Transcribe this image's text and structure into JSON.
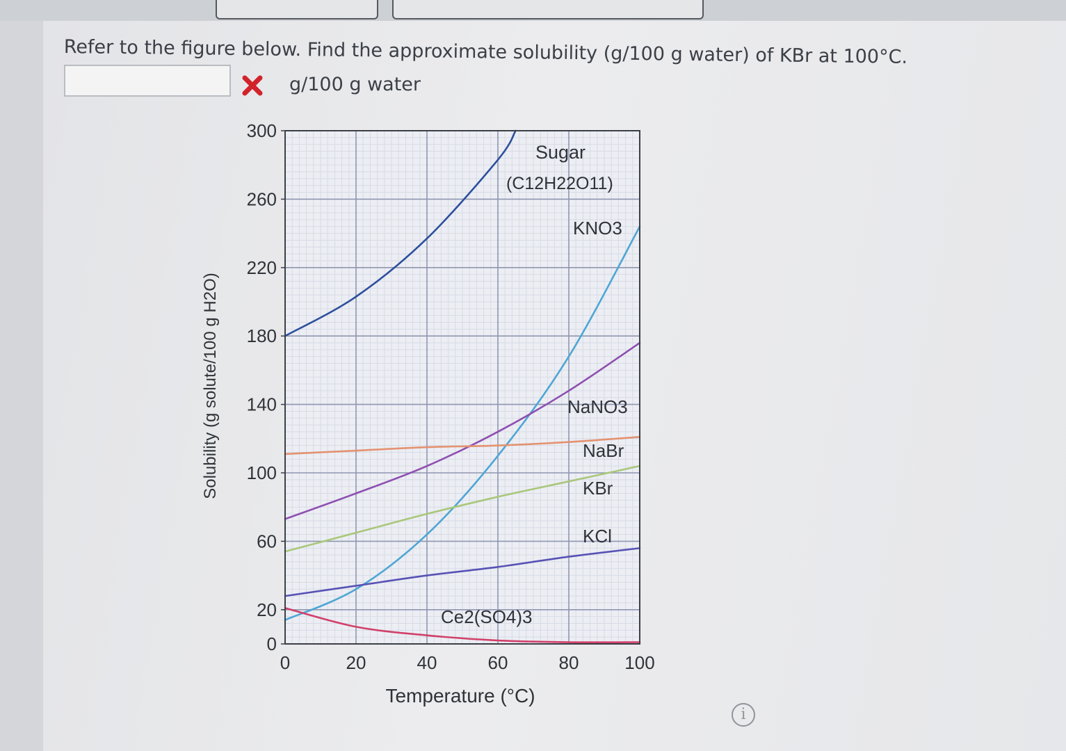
{
  "question": {
    "text": "Refer to the figure below. Find the approximate solubility (g/100 g water) of KBr at 100°C.",
    "answer_value": "",
    "unit": "g/100 g water",
    "status": "incorrect"
  },
  "icons": {
    "wrong": "x-mark-icon",
    "info": "info-icon"
  },
  "colors": {
    "wrong": "#d2232a"
  },
  "chart_data": {
    "type": "line",
    "title": "",
    "xlabel": "Temperature (°C)",
    "ylabel": "Solubility (g solute/100 g H2O)",
    "xlim": [
      0,
      100
    ],
    "ylim": [
      0,
      300
    ],
    "xticks": [
      0,
      20,
      40,
      60,
      80,
      100
    ],
    "yticks": [
      0,
      20,
      60,
      100,
      140,
      180,
      220,
      260,
      300
    ],
    "grid": true,
    "series": [
      {
        "name": "Sugar (C12H22O11)",
        "color": "#2d4f9c",
        "x": [
          0,
          20,
          40,
          60,
          65
        ],
        "y": [
          180,
          203,
          237,
          283,
          300
        ]
      },
      {
        "name": "KNO3",
        "color": "#4ea6d4",
        "x": [
          0,
          20,
          40,
          60,
          80,
          100
        ],
        "y": [
          14,
          32,
          64,
          110,
          168,
          244
        ]
      },
      {
        "name": "NaNO3",
        "color": "#8e4fb0",
        "x": [
          0,
          20,
          40,
          60,
          80,
          100
        ],
        "y": [
          73,
          88,
          104,
          124,
          148,
          176
        ]
      },
      {
        "name": "NaBr",
        "color": "#e49270",
        "x": [
          0,
          20,
          40,
          60,
          80,
          100
        ],
        "y": [
          111,
          113,
          115,
          116,
          118,
          121
        ]
      },
      {
        "name": "KBr",
        "color": "#a9c77a",
        "x": [
          0,
          20,
          40,
          60,
          80,
          100
        ],
        "y": [
          54,
          65,
          76,
          86,
          95,
          104
        ]
      },
      {
        "name": "KCl",
        "color": "#5752b5",
        "x": [
          0,
          20,
          40,
          60,
          80,
          100
        ],
        "y": [
          28,
          34,
          40,
          45,
          51,
          56
        ]
      },
      {
        "name": "Ce2(SO4)3",
        "color": "#d1406a",
        "x": [
          0,
          20,
          40,
          60,
          80,
          100
        ],
        "y": [
          21,
          10,
          5,
          2,
          1,
          1
        ]
      }
    ],
    "labels": {
      "sugar_line1": "Sugar",
      "sugar_line2": "(C12H22O11)",
      "kno3": "KNO3",
      "nano3": "NaNO3",
      "nabr": "NaBr",
      "kbr": "KBr",
      "kcl": "KCl",
      "ce2so43": "Ce2(SO4)3"
    }
  }
}
